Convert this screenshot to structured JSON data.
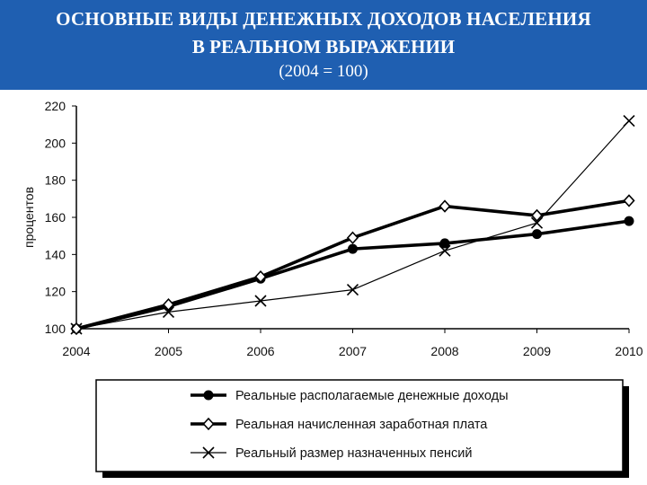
{
  "header": {
    "line1": "ОСНОВНЫЕ ВИДЫ ДЕНЕЖНЫХ ДОХОДОВ НАСЕЛЕНИЯ",
    "line2": "В РЕАЛЬНОМ ВЫРАЖЕНИИ",
    "line3": "(2004 = 100)"
  },
  "colors": {
    "header_bg": "#1f5fb1",
    "header_text": "#ffffff",
    "lines": "#000000"
  },
  "chart_data": {
    "type": "line",
    "title": "ОСНОВНЫЕ ВИДЫ ДЕНЕЖНЫХ ДОХОДОВ НАСЕЛЕНИЯ В РЕАЛЬНОМ ВЫРАЖЕНИИ (2004 = 100)",
    "xlabel": "",
    "ylabel": "процентов",
    "ylim": [
      100,
      220
    ],
    "yticks": [
      100,
      120,
      140,
      160,
      180,
      200,
      220
    ],
    "categories": [
      "2004",
      "2005",
      "2006",
      "2007",
      "2008",
      "2009",
      "2010"
    ],
    "grid": false,
    "legend_position": "bottom",
    "series": [
      {
        "name": "Реальные располагаемые денежные доходы",
        "marker": "circle",
        "stroke": "thick",
        "values": [
          100,
          112,
          127,
          143,
          146,
          151,
          158
        ]
      },
      {
        "name": "Реальная начисленная заработная плата",
        "marker": "diamond",
        "stroke": "thick",
        "values": [
          100,
          113,
          128,
          149,
          166,
          161,
          169
        ]
      },
      {
        "name": "Реальный размер назначенных пенсий",
        "marker": "x",
        "stroke": "thin",
        "values": [
          100,
          109,
          115,
          121,
          142,
          157,
          212
        ]
      }
    ]
  }
}
